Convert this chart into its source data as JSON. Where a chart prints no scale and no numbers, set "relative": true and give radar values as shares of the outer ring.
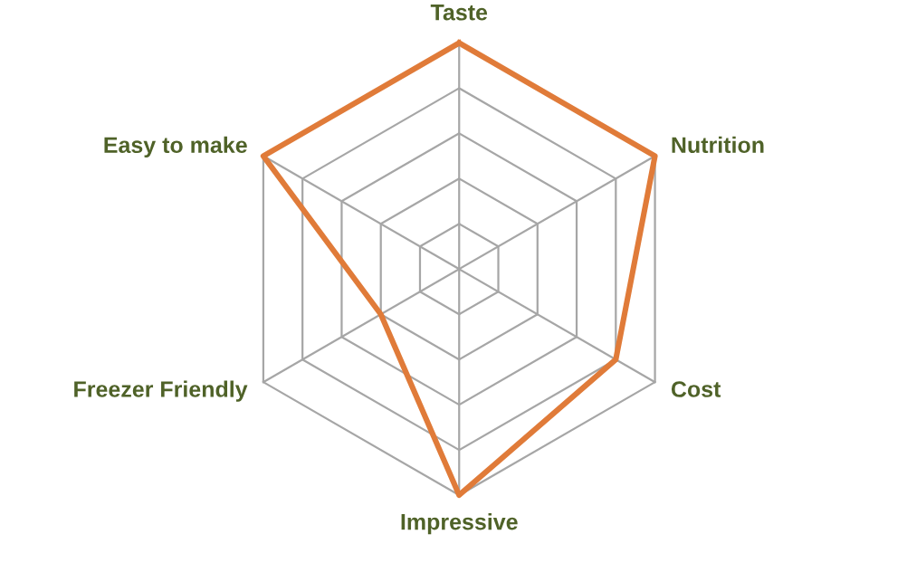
{
  "chart_data": {
    "type": "radar",
    "relative": true,
    "grid": true,
    "marker": "none",
    "line_style": "solid",
    "categories": [
      "Taste",
      "Nutrition",
      "Cost",
      "Impressive",
      "Freezer Friendly",
      "Easy to make"
    ],
    "series": [
      {
        "color": "#e07b39",
        "values": [
          1,
          1,
          0.8,
          1,
          0.4,
          1
        ]
      }
    ]
  }
}
